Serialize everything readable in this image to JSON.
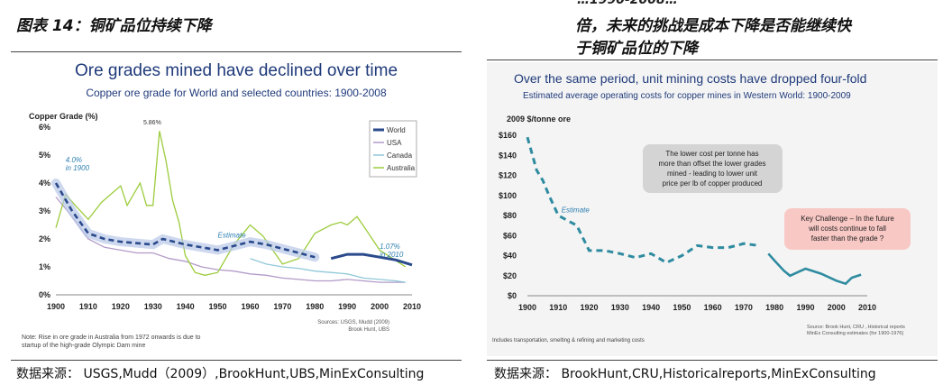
{
  "left": {
    "figure_title": "图表 14：铜矿品位持续下降",
    "source": "数据来源： USGS,Mudd（2009）,BrookHunt,UBS,MinExConsulting"
  },
  "right": {
    "top_cropped_text": "…1990-2008…",
    "figure_title_line1": "倍，未来的挑战是成本下降是否能继续快",
    "figure_title_line2": "于铜矿品位的下降",
    "source": "数据来源： BrookHunt,CRU,Historicalreports,MinExConsulting"
  },
  "colors": {
    "world": "#2a4a8c",
    "usa": "#b39bc8",
    "canada": "#8fc8d8",
    "australia": "#9ccc3c",
    "cost": "#2e8ba0",
    "glow": "#b8c8e8"
  },
  "chart_data": [
    {
      "type": "line",
      "title": "Ore grades mined have declined over time",
      "subtitle": "Copper ore grade for World and selected countries: 1900-2008",
      "ylabel": "Copper Grade (%)",
      "xlabel": "",
      "xlim": [
        1900,
        2010
      ],
      "ylim": [
        0,
        6
      ],
      "x_ticks": [
        "1900",
        "1910",
        "1920",
        "1930",
        "1940",
        "1950",
        "1960",
        "1970",
        "1980",
        "1990",
        "2000",
        "2010"
      ],
      "y_ticks": [
        "0%",
        "1%",
        "2%",
        "3%",
        "4%",
        "5%",
        "6%"
      ],
      "legend": [
        "World",
        "USA",
        "Canada",
        "Australia"
      ],
      "legend_position": "top-right",
      "annotations": {
        "start": "4.0% in 1900",
        "end": "1.07% in 2010",
        "peak": "5.86%",
        "estimate": "Estimate",
        "note": "Note: Rise in ore grade in Australia from 1972 onwards is due to startup of the high-grade Olympic Dam mine",
        "sources": "Sources: USGS, Mudd (2009) Brook Hunt, UBS"
      },
      "series": [
        {
          "name": "World",
          "x": [
            1900,
            1905,
            1910,
            1915,
            1920,
            1925,
            1930,
            1933,
            1940,
            1945,
            1950,
            1955,
            1960,
            1965,
            1970,
            1975,
            1980,
            1985,
            1990,
            1995,
            2000,
            2005,
            2010
          ],
          "y": [
            4.0,
            3.0,
            2.2,
            2.0,
            1.9,
            1.85,
            1.8,
            2.0,
            1.8,
            1.7,
            1.6,
            1.75,
            1.9,
            1.8,
            1.65,
            1.5,
            1.35,
            1.3,
            1.45,
            1.45,
            1.35,
            1.25,
            1.07
          ],
          "estimate_until": 1983
        },
        {
          "name": "USA",
          "x": [
            1900,
            1905,
            1910,
            1915,
            1920,
            1925,
            1930,
            1935,
            1940,
            1945,
            1950,
            1955,
            1960,
            1965,
            1970,
            1975,
            1980,
            1985,
            1990,
            1995,
            2000,
            2005,
            2008
          ],
          "y": [
            3.5,
            2.8,
            2.0,
            1.7,
            1.6,
            1.5,
            1.5,
            1.3,
            1.2,
            1.0,
            0.9,
            0.85,
            0.75,
            0.7,
            0.6,
            0.55,
            0.5,
            0.5,
            0.55,
            0.5,
            0.45,
            0.45,
            0.45
          ]
        },
        {
          "name": "Canada",
          "x": [
            1960,
            1965,
            1970,
            1975,
            1980,
            1985,
            1990,
            1995,
            2000,
            2005,
            2008
          ],
          "y": [
            1.3,
            1.1,
            1.0,
            0.95,
            0.85,
            0.8,
            0.75,
            0.6,
            0.55,
            0.5,
            0.45
          ]
        },
        {
          "name": "Australia",
          "x": [
            1900,
            1903,
            1906,
            1910,
            1914,
            1918,
            1920,
            1922,
            1924,
            1926,
            1928,
            1930,
            1932,
            1934,
            1936,
            1938,
            1940,
            1943,
            1946,
            1950,
            1955,
            1960,
            1964,
            1970,
            1975,
            1980,
            1985,
            1988,
            1990,
            1993,
            1996,
            2000,
            2004,
            2008
          ],
          "y": [
            2.4,
            3.6,
            3.2,
            2.7,
            3.3,
            3.7,
            3.9,
            3.2,
            3.6,
            4.0,
            3.2,
            3.2,
            5.86,
            4.8,
            3.4,
            2.6,
            1.4,
            0.8,
            0.7,
            0.8,
            1.8,
            2.5,
            2.1,
            1.1,
            1.3,
            2.2,
            2.5,
            2.6,
            2.5,
            2.8,
            2.3,
            1.6,
            1.3,
            1.0
          ]
        }
      ]
    },
    {
      "type": "line",
      "title": "Over the same period, unit mining costs have dropped four-fold",
      "subtitle": "Estimated average operating costs for copper mines in Western World: 1900-2009",
      "ylabel": "2009 $/tonne ore",
      "xlabel": "",
      "xlim": [
        1900,
        2010
      ],
      "ylim": [
        0,
        160
      ],
      "x_ticks": [
        "1900",
        "1910",
        "1920",
        "1930",
        "1940",
        "1950",
        "1960",
        "1970",
        "1980",
        "1990",
        "2000",
        "2010"
      ],
      "y_ticks": [
        "$0",
        "$20",
        "$40",
        "$60",
        "$80",
        "$100",
        "$120",
        "$140",
        "$160"
      ],
      "annotations": {
        "estimate": "Estimate",
        "box1": "The lower cost per tonne has more than offset the lower grades mined - leading to lower unit price per lb of copper produced",
        "box2": "Key Challenge – In the future will costs continue to fall faster than the grade ?",
        "footnote": "Includes transportation, smelting & refining and marketing costs",
        "sources": "Source: Brook Hunt, CRU, Historical reports MinEx Consulting estimates (for 1900-1976)"
      },
      "series": [
        {
          "name": "",
          "x": [
            1900,
            1903,
            1905,
            1907,
            1910,
            1913,
            1916,
            1920,
            1925,
            1930,
            1935,
            1940,
            1945,
            1950,
            1955,
            1960,
            1965,
            1970,
            1975,
            1978,
            1980,
            1983,
            1985,
            1990,
            1995,
            2000,
            2003,
            2005,
            2008
          ],
          "y": [
            158,
            125,
            115,
            100,
            80,
            75,
            70,
            45,
            45,
            42,
            38,
            42,
            33,
            40,
            50,
            48,
            48,
            52,
            50,
            42,
            35,
            25,
            20,
            27,
            22,
            15,
            12,
            18,
            21
          ],
          "estimate_until": 1976
        }
      ]
    }
  ]
}
